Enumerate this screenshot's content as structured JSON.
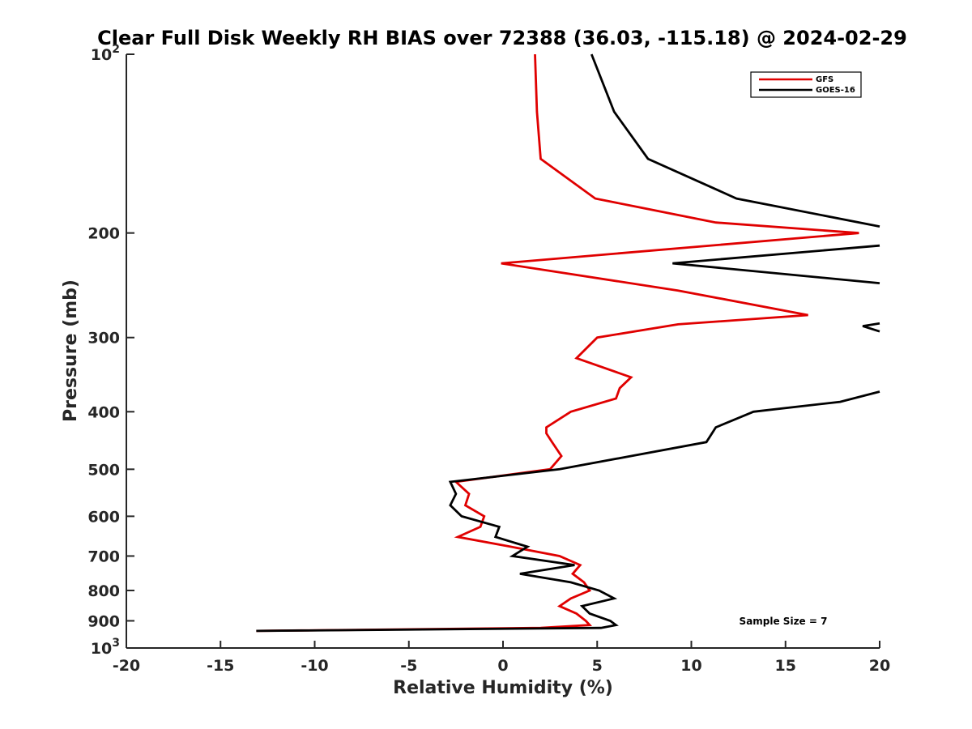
{
  "chart_data": {
    "type": "line",
    "title": "Clear Full Disk Weekly RH BIAS over 72388 (36.03, -115.18) @ 2024-02-29",
    "xlabel": "Relative Humidity (%)",
    "ylabel": "Pressure (mb)",
    "xlim": [
      -20,
      20
    ],
    "ylim": [
      100,
      1000
    ],
    "yscale": "log",
    "y_reversed": true,
    "grid": false,
    "legend_position": "top-right",
    "x_ticks": [
      "-20",
      "-15",
      "-10",
      "-5",
      "0",
      "5",
      "10",
      "15",
      "20"
    ],
    "y_ticks": [
      {
        "value": 100,
        "base": "10",
        "exp": "2"
      },
      {
        "value": 200,
        "label": "200"
      },
      {
        "value": 300,
        "label": "300"
      },
      {
        "value": 400,
        "label": "400"
      },
      {
        "value": 500,
        "label": "500"
      },
      {
        "value": 600,
        "label": "600"
      },
      {
        "value": 700,
        "label": "700"
      },
      {
        "value": 800,
        "label": "800"
      },
      {
        "value": 900,
        "label": "900"
      },
      {
        "value": 1000,
        "base": "10",
        "exp": "3"
      }
    ],
    "annotation": "Sample Size = 7",
    "series": [
      {
        "name": "GFS",
        "color": "#e00000",
        "points": [
          [
            1.7,
            100
          ],
          [
            1.8,
            125
          ],
          [
            2.0,
            150
          ],
          [
            4.9,
            175
          ],
          [
            11.3,
            192
          ],
          [
            18.9,
            200
          ],
          [
            -0.1,
            225
          ],
          [
            9.3,
            250
          ],
          [
            16.2,
            275
          ],
          [
            9.3,
            285
          ],
          [
            5.0,
            300
          ],
          [
            3.9,
            325
          ],
          [
            6.8,
            350
          ],
          [
            6.2,
            365
          ],
          [
            6.0,
            380
          ],
          [
            3.6,
            400
          ],
          [
            2.3,
            425
          ],
          [
            2.3,
            435
          ],
          [
            2.6,
            450
          ],
          [
            3.1,
            475
          ],
          [
            2.5,
            500
          ],
          [
            -2.5,
            525
          ],
          [
            -1.8,
            550
          ],
          [
            -2.0,
            575
          ],
          [
            -1.0,
            600
          ],
          [
            -1.2,
            625
          ],
          [
            -2.4,
            650
          ],
          [
            0.4,
            675
          ],
          [
            3.0,
            700
          ],
          [
            4.1,
            725
          ],
          [
            3.7,
            750
          ],
          [
            4.3,
            775
          ],
          [
            4.6,
            800
          ],
          [
            3.6,
            825
          ],
          [
            3.0,
            850
          ],
          [
            3.9,
            875
          ],
          [
            4.4,
            900
          ],
          [
            4.6,
            915
          ],
          [
            2.0,
            925
          ],
          [
            -13.1,
            936
          ]
        ]
      },
      {
        "name": "GOES-16",
        "color": "#000000",
        "points": [
          [
            4.7,
            100
          ],
          [
            5.9,
            125
          ],
          [
            7.7,
            150
          ],
          [
            12.4,
            175
          ],
          [
            20.0,
            195
          ],
          null,
          [
            20.0,
            210
          ],
          [
            9.0,
            225
          ],
          [
            20.0,
            243
          ],
          null,
          [
            20.0,
            284
          ],
          [
            19.1,
            287
          ],
          [
            20.0,
            293
          ],
          null,
          [
            20.0,
            370
          ],
          [
            17.9,
            385
          ],
          [
            13.3,
            400
          ],
          [
            11.3,
            425
          ],
          [
            10.8,
            450
          ],
          [
            6.8,
            475
          ],
          [
            3.0,
            500
          ],
          [
            -2.8,
            525
          ],
          [
            -2.5,
            550
          ],
          [
            -2.8,
            575
          ],
          [
            -2.2,
            600
          ],
          [
            -0.2,
            625
          ],
          [
            -0.4,
            650
          ],
          [
            1.3,
            675
          ],
          [
            0.5,
            700
          ],
          [
            3.8,
            725
          ],
          [
            0.9,
            750
          ],
          [
            3.6,
            775
          ],
          [
            5.1,
            800
          ],
          [
            5.9,
            825
          ],
          [
            4.2,
            850
          ],
          [
            4.6,
            875
          ],
          [
            5.7,
            900
          ],
          [
            6.0,
            915
          ],
          [
            5.2,
            925
          ],
          [
            -13.1,
            936
          ]
        ]
      }
    ]
  }
}
